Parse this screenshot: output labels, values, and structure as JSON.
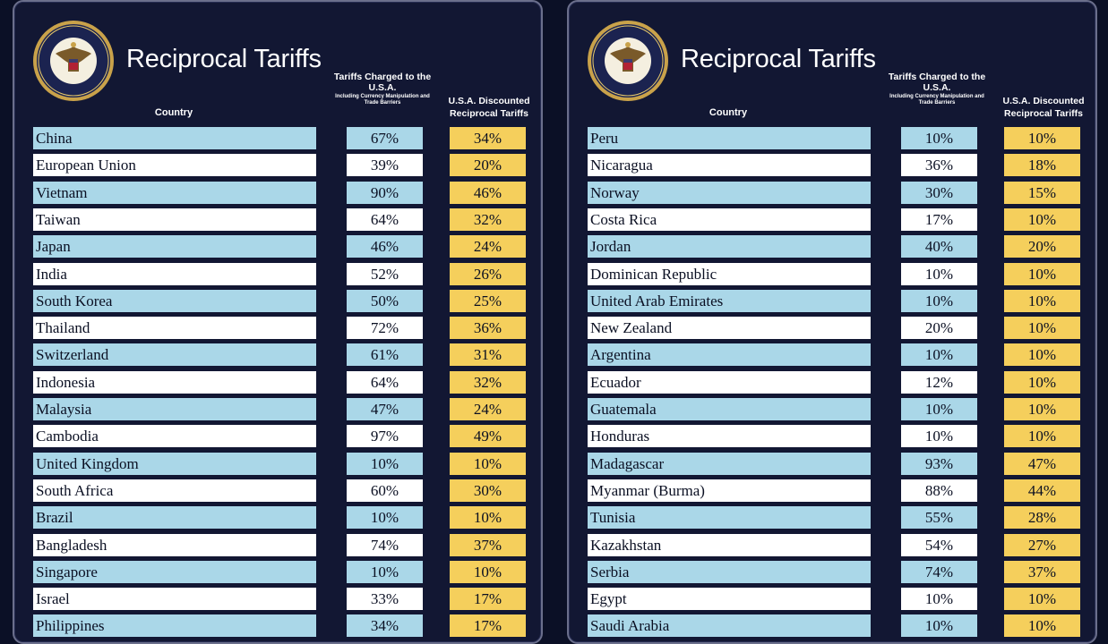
{
  "panels": [
    {
      "title": "Reciprocal Tariffs",
      "headers": {
        "country": "Country",
        "charged": "Tariffs Charged to the U.S.A.",
        "charged_sub": "Including Currency Manipulation and Trade Barriers",
        "discounted": "U.S.A. Discounted Reciprocal Tariffs"
      },
      "rows": [
        {
          "country": "China",
          "charged": "67%",
          "discounted": "34%"
        },
        {
          "country": "European Union",
          "charged": "39%",
          "discounted": "20%"
        },
        {
          "country": "Vietnam",
          "charged": "90%",
          "discounted": "46%"
        },
        {
          "country": "Taiwan",
          "charged": "64%",
          "discounted": "32%"
        },
        {
          "country": "Japan",
          "charged": "46%",
          "discounted": "24%"
        },
        {
          "country": "India",
          "charged": "52%",
          "discounted": "26%"
        },
        {
          "country": "South Korea",
          "charged": "50%",
          "discounted": "25%"
        },
        {
          "country": "Thailand",
          "charged": "72%",
          "discounted": "36%"
        },
        {
          "country": "Switzerland",
          "charged": "61%",
          "discounted": "31%"
        },
        {
          "country": "Indonesia",
          "charged": "64%",
          "discounted": "32%"
        },
        {
          "country": "Malaysia",
          "charged": "47%",
          "discounted": "24%"
        },
        {
          "country": "Cambodia",
          "charged": "97%",
          "discounted": "49%"
        },
        {
          "country": "United Kingdom",
          "charged": "10%",
          "discounted": "10%"
        },
        {
          "country": "South Africa",
          "charged": "60%",
          "discounted": "30%"
        },
        {
          "country": "Brazil",
          "charged": "10%",
          "discounted": "10%"
        },
        {
          "country": "Bangladesh",
          "charged": "74%",
          "discounted": "37%"
        },
        {
          "country": "Singapore",
          "charged": "10%",
          "discounted": "10%"
        },
        {
          "country": "Israel",
          "charged": "33%",
          "discounted": "17%"
        },
        {
          "country": "Philippines",
          "charged": "34%",
          "discounted": "17%"
        }
      ]
    },
    {
      "title": "Reciprocal Tariffs",
      "headers": {
        "country": "Country",
        "charged": "Tariffs Charged to the U.S.A.",
        "charged_sub": "Including Currency Manipulation and Trade Barriers",
        "discounted": "U.S.A. Discounted Reciprocal Tariffs"
      },
      "rows": [
        {
          "country": "Peru",
          "charged": "10%",
          "discounted": "10%"
        },
        {
          "country": "Nicaragua",
          "charged": "36%",
          "discounted": "18%"
        },
        {
          "country": "Norway",
          "charged": "30%",
          "discounted": "15%"
        },
        {
          "country": "Costa Rica",
          "charged": "17%",
          "discounted": "10%"
        },
        {
          "country": "Jordan",
          "charged": "40%",
          "discounted": "20%"
        },
        {
          "country": "Dominican Republic",
          "charged": "10%",
          "discounted": "10%"
        },
        {
          "country": "United Arab Emirates",
          "charged": "10%",
          "discounted": "10%"
        },
        {
          "country": "New Zealand",
          "charged": "20%",
          "discounted": "10%"
        },
        {
          "country": "Argentina",
          "charged": "10%",
          "discounted": "10%"
        },
        {
          "country": "Ecuador",
          "charged": "12%",
          "discounted": "10%"
        },
        {
          "country": "Guatemala",
          "charged": "10%",
          "discounted": "10%"
        },
        {
          "country": "Honduras",
          "charged": "10%",
          "discounted": "10%"
        },
        {
          "country": "Madagascar",
          "charged": "93%",
          "discounted": "47%"
        },
        {
          "country": "Myanmar (Burma)",
          "charged": "88%",
          "discounted": "44%"
        },
        {
          "country": "Tunisia",
          "charged": "55%",
          "discounted": "28%"
        },
        {
          "country": "Kazakhstan",
          "charged": "54%",
          "discounted": "27%"
        },
        {
          "country": "Serbia",
          "charged": "74%",
          "discounted": "37%"
        },
        {
          "country": "Egypt",
          "charged": "10%",
          "discounted": "10%"
        },
        {
          "country": "Saudi Arabia",
          "charged": "10%",
          "discounted": "10%"
        }
      ]
    }
  ]
}
